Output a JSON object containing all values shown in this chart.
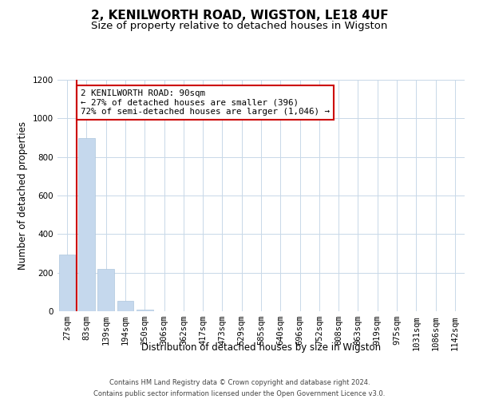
{
  "title": "2, KENILWORTH ROAD, WIGSTON, LE18 4UF",
  "subtitle": "Size of property relative to detached houses in Wigston",
  "xlabel": "Distribution of detached houses by size in Wigston",
  "ylabel": "Number of detached properties",
  "bar_labels": [
    "27sqm",
    "83sqm",
    "139sqm",
    "194sqm",
    "250sqm",
    "306sqm",
    "362sqm",
    "417sqm",
    "473sqm",
    "529sqm",
    "585sqm",
    "640sqm",
    "696sqm",
    "752sqm",
    "808sqm",
    "863sqm",
    "919sqm",
    "975sqm",
    "1031sqm",
    "1086sqm",
    "1142sqm"
  ],
  "bar_values": [
    295,
    900,
    220,
    55,
    10,
    0,
    0,
    0,
    0,
    0,
    0,
    0,
    0,
    0,
    0,
    0,
    0,
    0,
    0,
    0,
    0
  ],
  "bar_color": "#c5d8ed",
  "bar_edge_color": "#aec6de",
  "property_line_color": "#cc0000",
  "annotation_text": "2 KENILWORTH ROAD: 90sqm\n← 27% of detached houses are smaller (396)\n72% of semi-detached houses are larger (1,046) →",
  "annotation_box_edge": "#cc0000",
  "annotation_box_face": "#ffffff",
  "ylim": [
    0,
    1200
  ],
  "yticks": [
    0,
    200,
    400,
    600,
    800,
    1000,
    1200
  ],
  "footer_line1": "Contains HM Land Registry data © Crown copyright and database right 2024.",
  "footer_line2": "Contains public sector information licensed under the Open Government Licence v3.0.",
  "background_color": "#ffffff",
  "grid_color": "#c8d8e8",
  "title_fontsize": 11,
  "subtitle_fontsize": 9.5,
  "axis_label_fontsize": 8.5,
  "tick_fontsize": 7.5,
  "footer_fontsize": 6.0
}
